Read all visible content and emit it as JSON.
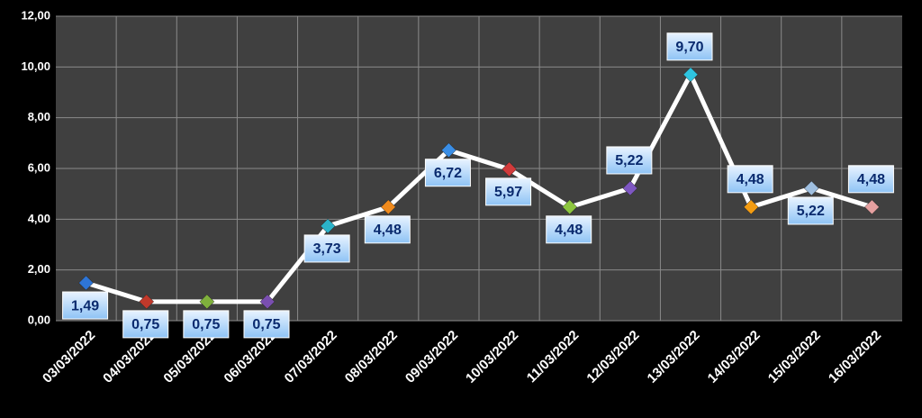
{
  "chart_data": {
    "type": "line",
    "categories": [
      "03/03/2022",
      "04/03/2022",
      "05/03/2022",
      "06/03/2022",
      "07/03/2022",
      "08/03/2022",
      "09/03/2022",
      "10/03/2022",
      "11/03/2022",
      "12/03/2022",
      "13/03/2022",
      "14/03/2022",
      "15/03/2022",
      "16/03/2022"
    ],
    "series": [
      {
        "color": "#ffffff",
        "values": [
          1.49,
          0.75,
          0.75,
          0.75,
          3.73,
          4.48,
          6.72,
          5.97,
          4.48,
          5.22,
          9.7,
          4.48,
          5.22,
          4.48
        ],
        "value_labels": [
          "1,49",
          "0,75",
          "0,75",
          "0,75",
          "3,73",
          "4,48",
          "6,72",
          "5,97",
          "4,48",
          "5,22",
          "9,70",
          "4,48",
          "5,22",
          "4,48"
        ],
        "marker_colors": [
          "#2e75d6",
          "#c0392b",
          "#7fb03c",
          "#7a4fb0",
          "#2bb3c9",
          "#f08a1c",
          "#3a8ee6",
          "#d23b3b",
          "#8dc63f",
          "#7e57c2",
          "#2ec4e0",
          "#f39c12",
          "#9fbfe0",
          "#e5a0a0"
        ]
      }
    ],
    "ylim": [
      0,
      12
    ],
    "yticks": [
      {
        "value": 0,
        "label": "0,00"
      },
      {
        "value": 2,
        "label": "2,00"
      },
      {
        "value": 4,
        "label": "4,00"
      },
      {
        "value": 6,
        "label": "6,00"
      },
      {
        "value": 8,
        "label": "8,00"
      },
      {
        "value": 10,
        "label": "10,00"
      },
      {
        "value": 12,
        "label": "12,00"
      }
    ],
    "grid": true
  }
}
